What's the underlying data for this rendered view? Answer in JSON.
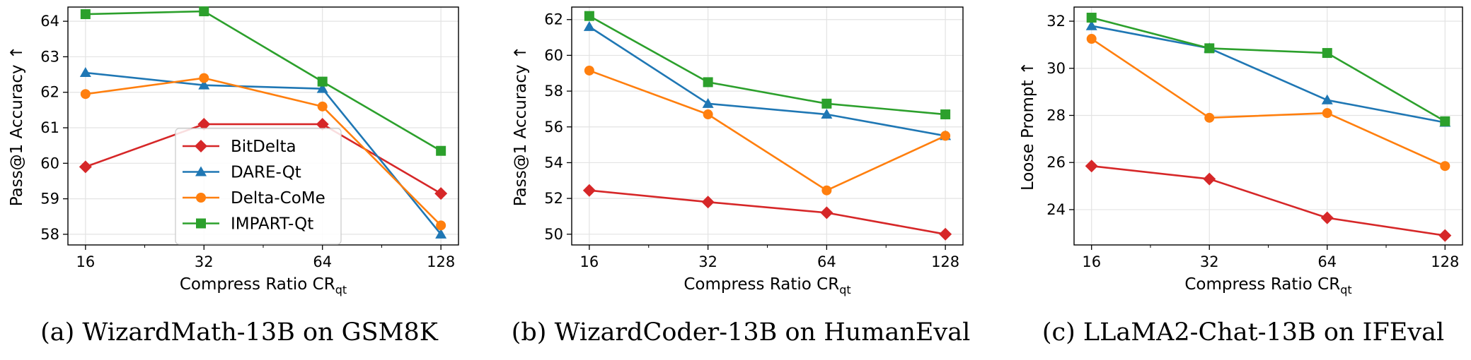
{
  "figure": {
    "legend_entries": [
      {
        "name": "BitDelta",
        "color": "#d62728",
        "marker": "diamond"
      },
      {
        "name": "DARE-Qt",
        "color": "#1f77b4",
        "marker": "triangle"
      },
      {
        "name": "Delta-CoMe",
        "color": "#ff7f0e",
        "marker": "circle"
      },
      {
        "name": "IMPART-Qt",
        "color": "#2ca02c",
        "marker": "square"
      }
    ]
  },
  "chart_data": [
    {
      "type": "line",
      "caption": "(a) WizardMath-13B on GSM8K",
      "xlabel": "Compress Ratio CR",
      "xlabel_sub": "qt",
      "ylabel": "Pass@1 Accuracy ↑",
      "x_scale": "log2",
      "categories": [
        "16",
        "32",
        "64",
        "128"
      ],
      "x": [
        16,
        32,
        64,
        128
      ],
      "ylim": [
        57.7,
        64.4
      ],
      "yticks": [
        58,
        59,
        60,
        61,
        62,
        63,
        64
      ],
      "grid": true,
      "legend": "lower-left",
      "series": [
        {
          "name": "BitDelta",
          "color": "#d62728",
          "marker": "diamond",
          "values": [
            59.9,
            61.1,
            61.1,
            59.15
          ]
        },
        {
          "name": "DARE-Qt",
          "color": "#1f77b4",
          "marker": "triangle",
          "values": [
            62.55,
            62.2,
            62.1,
            58.0
          ]
        },
        {
          "name": "Delta-CoMe",
          "color": "#ff7f0e",
          "marker": "circle",
          "values": [
            61.95,
            62.4,
            61.6,
            58.25
          ]
        },
        {
          "name": "IMPART-Qt",
          "color": "#2ca02c",
          "marker": "square",
          "values": [
            64.2,
            64.28,
            62.3,
            60.35
          ]
        }
      ]
    },
    {
      "type": "line",
      "caption": "(b) WizardCoder-13B on HumanEval",
      "xlabel": "Compress Ratio CR",
      "xlabel_sub": "qt",
      "ylabel": "Pass@1 Accuracy ↑",
      "x_scale": "log2",
      "categories": [
        "16",
        "32",
        "64",
        "128"
      ],
      "x": [
        16,
        32,
        64,
        128
      ],
      "ylim": [
        49.4,
        62.7
      ],
      "yticks": [
        50,
        52,
        54,
        56,
        58,
        60,
        62
      ],
      "grid": true,
      "series": [
        {
          "name": "BitDelta",
          "color": "#d62728",
          "marker": "diamond",
          "values": [
            52.45,
            51.8,
            51.2,
            50.0
          ]
        },
        {
          "name": "DARE-Qt",
          "color": "#1f77b4",
          "marker": "triangle",
          "values": [
            61.6,
            57.3,
            56.7,
            55.5
          ]
        },
        {
          "name": "Delta-CoMe",
          "color": "#ff7f0e",
          "marker": "circle",
          "values": [
            59.15,
            56.7,
            52.45,
            55.5
          ]
        },
        {
          "name": "IMPART-Qt",
          "color": "#2ca02c",
          "marker": "square",
          "values": [
            62.2,
            58.5,
            57.3,
            56.7
          ]
        }
      ]
    },
    {
      "type": "line",
      "caption": "(c) LLaMA2-Chat-13B on IFEval",
      "xlabel": "Compress Ratio CR",
      "xlabel_sub": "qt",
      "ylabel": "Loose Prompt ↑",
      "x_scale": "log2",
      "categories": [
        "16",
        "32",
        "64",
        "128"
      ],
      "x": [
        16,
        32,
        64,
        128
      ],
      "ylim": [
        22.5,
        32.6
      ],
      "yticks": [
        24,
        26,
        28,
        30,
        32
      ],
      "grid": true,
      "series": [
        {
          "name": "BitDelta",
          "color": "#d62728",
          "marker": "diamond",
          "values": [
            25.85,
            25.3,
            23.65,
            22.9
          ]
        },
        {
          "name": "DARE-Qt",
          "color": "#1f77b4",
          "marker": "triangle",
          "values": [
            31.8,
            30.85,
            28.65,
            27.7
          ]
        },
        {
          "name": "Delta-CoMe",
          "color": "#ff7f0e",
          "marker": "circle",
          "values": [
            31.25,
            27.9,
            28.1,
            25.85
          ]
        },
        {
          "name": "IMPART-Qt",
          "color": "#2ca02c",
          "marker": "square",
          "values": [
            32.15,
            30.85,
            30.65,
            27.75
          ]
        }
      ]
    }
  ]
}
